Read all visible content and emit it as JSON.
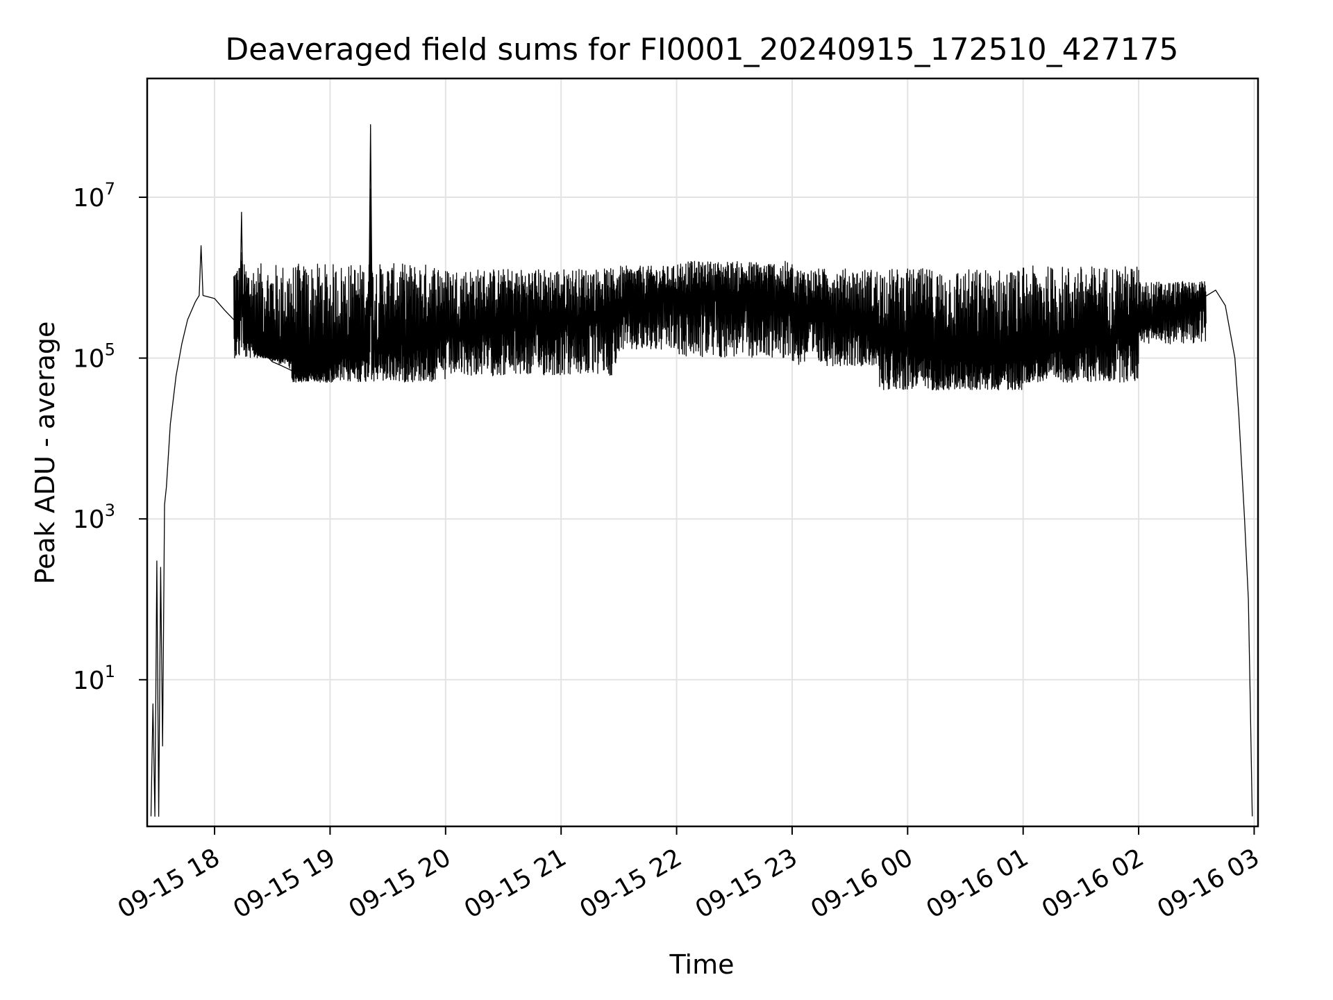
{
  "chart_data": {
    "type": "line",
    "title": "Deaveraged field sums for FI0001_20240915_172510_427175",
    "xlabel": "Time",
    "ylabel": "Peak ADU - average",
    "yscale": "log",
    "grid": true,
    "xlim": [
      "2024-09-15 17:25",
      "2024-09-16 03:02"
    ],
    "ylim": [
      0.15,
      300000000
    ],
    "xticks": [
      {
        "label": "09-15 18",
        "value": "2024-09-15 18:00"
      },
      {
        "label": "09-15 19",
        "value": "2024-09-15 19:00"
      },
      {
        "label": "09-15 20",
        "value": "2024-09-15 20:00"
      },
      {
        "label": "09-15 21",
        "value": "2024-09-15 21:00"
      },
      {
        "label": "09-15 22",
        "value": "2024-09-15 22:00"
      },
      {
        "label": "09-15 23",
        "value": "2024-09-15 23:00"
      },
      {
        "label": "09-16 00",
        "value": "2024-09-16 00:00"
      },
      {
        "label": "09-16 01",
        "value": "2024-09-16 01:00"
      },
      {
        "label": "09-16 02",
        "value": "2024-09-16 02:00"
      },
      {
        "label": "09-16 03",
        "value": "2024-09-16 03:00"
      }
    ],
    "yticks": [
      {
        "base": "10",
        "exp": "1",
        "value": 10
      },
      {
        "base": "10",
        "exp": "3",
        "value": 1000
      },
      {
        "base": "10",
        "exp": "5",
        "value": 100000
      },
      {
        "base": "10",
        "exp": "7",
        "value": 10000000
      }
    ],
    "series": [
      {
        "color": "#000000",
        "points": [
          [
            "2024-09-15 17:27",
            0.2
          ],
          [
            "2024-09-15 17:28",
            5
          ],
          [
            "2024-09-15 17:29",
            0.2
          ],
          [
            "2024-09-15 17:30",
            300
          ],
          [
            "2024-09-15 17:31",
            0.2
          ],
          [
            "2024-09-15 17:32",
            250
          ],
          [
            "2024-09-15 17:33",
            1.5
          ],
          [
            "2024-09-15 17:34",
            1500
          ],
          [
            "2024-09-15 17:35",
            2500
          ],
          [
            "2024-09-15 17:37",
            15000
          ],
          [
            "2024-09-15 17:40",
            60000
          ],
          [
            "2024-09-15 17:43",
            150000
          ],
          [
            "2024-09-15 17:46",
            300000
          ],
          [
            "2024-09-15 17:50",
            500000
          ],
          [
            "2024-09-15 17:52",
            600000
          ],
          [
            "2024-09-15 17:53",
            2500000
          ],
          [
            "2024-09-15 17:54",
            600000
          ],
          [
            "2024-09-15 18:00",
            550000
          ],
          [
            "2024-09-15 18:05",
            400000
          ],
          [
            "2024-09-15 18:10",
            300000
          ],
          [
            "2024-09-15 18:13",
            250000
          ],
          [
            "2024-09-15 18:14",
            6500000
          ],
          [
            "2024-09-15 18:15",
            200000
          ],
          [
            "2024-09-15 18:20",
            150000
          ],
          [
            "2024-09-15 18:25",
            120000
          ],
          [
            "2024-09-15 18:30",
            90000
          ],
          [
            "2024-09-15 18:35",
            80000
          ],
          [
            "2024-09-15 18:40",
            70000
          ],
          [
            "2024-09-15 18:45",
            60000
          ],
          [
            "2024-09-15 18:50",
            70000
          ],
          [
            "2024-09-15 18:55",
            65000
          ],
          [
            "2024-09-15 19:00",
            80000
          ],
          [
            "2024-09-15 19:05",
            100000
          ],
          [
            "2024-09-15 19:10",
            110000
          ],
          [
            "2024-09-15 19:15",
            120000
          ],
          [
            "2024-09-15 19:20",
            130000
          ],
          [
            "2024-09-15 19:21",
            80000000
          ],
          [
            "2024-09-15 19:22",
            130000
          ],
          [
            "2024-09-15 19:30",
            150000
          ],
          [
            "2024-09-15 19:40",
            160000
          ],
          [
            "2024-09-15 19:50",
            170000
          ],
          [
            "2024-09-15 20:00",
            200000
          ],
          [
            "2024-09-15 20:15",
            230000
          ],
          [
            "2024-09-15 20:30",
            250000
          ],
          [
            "2024-09-15 20:45",
            270000
          ],
          [
            "2024-09-15 21:00",
            300000
          ],
          [
            "2024-09-15 21:15",
            330000
          ],
          [
            "2024-09-15 21:30",
            400000
          ],
          [
            "2024-09-15 21:45",
            500000
          ],
          [
            "2024-09-15 22:00",
            550000
          ],
          [
            "2024-09-15 22:15",
            700000
          ],
          [
            "2024-09-15 22:30",
            600000
          ],
          [
            "2024-09-15 22:45",
            500000
          ],
          [
            "2024-09-15 23:00",
            450000
          ],
          [
            "2024-09-15 23:15",
            400000
          ],
          [
            "2024-09-15 23:30",
            300000
          ],
          [
            "2024-09-15 23:45",
            200000
          ],
          [
            "2024-09-16 00:00",
            150000
          ],
          [
            "2024-09-16 00:15",
            110000
          ],
          [
            "2024-09-16 00:30",
            100000
          ],
          [
            "2024-09-16 00:45",
            90000
          ],
          [
            "2024-09-16 01:00",
            100000
          ],
          [
            "2024-09-16 01:15",
            120000
          ],
          [
            "2024-09-16 01:30",
            140000
          ],
          [
            "2024-09-16 01:45",
            180000
          ],
          [
            "2024-09-16 02:00",
            250000
          ],
          [
            "2024-09-16 02:15",
            350000
          ],
          [
            "2024-09-16 02:30",
            500000
          ],
          [
            "2024-09-16 02:40",
            700000
          ],
          [
            "2024-09-16 02:45",
            450000
          ],
          [
            "2024-09-16 02:50",
            100000
          ],
          [
            "2024-09-16 02:52",
            20000
          ],
          [
            "2024-09-16 02:55",
            1000
          ],
          [
            "2024-09-16 02:57",
            100
          ],
          [
            "2024-09-16 02:58",
            5
          ],
          [
            "2024-09-16 02:59",
            0.2
          ]
        ],
        "fluctuation_band": [
          {
            "from": "2024-09-15 18:10",
            "to": "2024-09-15 18:40",
            "low": 100000,
            "high": 1500000
          },
          {
            "from": "2024-09-15 18:40",
            "to": "2024-09-15 20:00",
            "low": 50000,
            "high": 1500000
          },
          {
            "from": "2024-09-15 20:00",
            "to": "2024-09-15 21:30",
            "low": 60000,
            "high": 1300000
          },
          {
            "from": "2024-09-15 21:30",
            "to": "2024-09-15 22:00",
            "low": 120000,
            "high": 1400000
          },
          {
            "from": "2024-09-15 22:00",
            "to": "2024-09-15 23:00",
            "low": 100000,
            "high": 1600000
          },
          {
            "from": "2024-09-15 23:00",
            "to": "2024-09-15 23:45",
            "low": 80000,
            "high": 1300000
          },
          {
            "from": "2024-09-15 23:45",
            "to": "2024-09-16 01:00",
            "low": 40000,
            "high": 1300000
          },
          {
            "from": "2024-09-16 01:00",
            "to": "2024-09-16 02:00",
            "low": 50000,
            "high": 1400000
          },
          {
            "from": "2024-09-16 02:00",
            "to": "2024-09-16 02:35",
            "low": 150000,
            "high": 900000
          }
        ]
      }
    ]
  }
}
